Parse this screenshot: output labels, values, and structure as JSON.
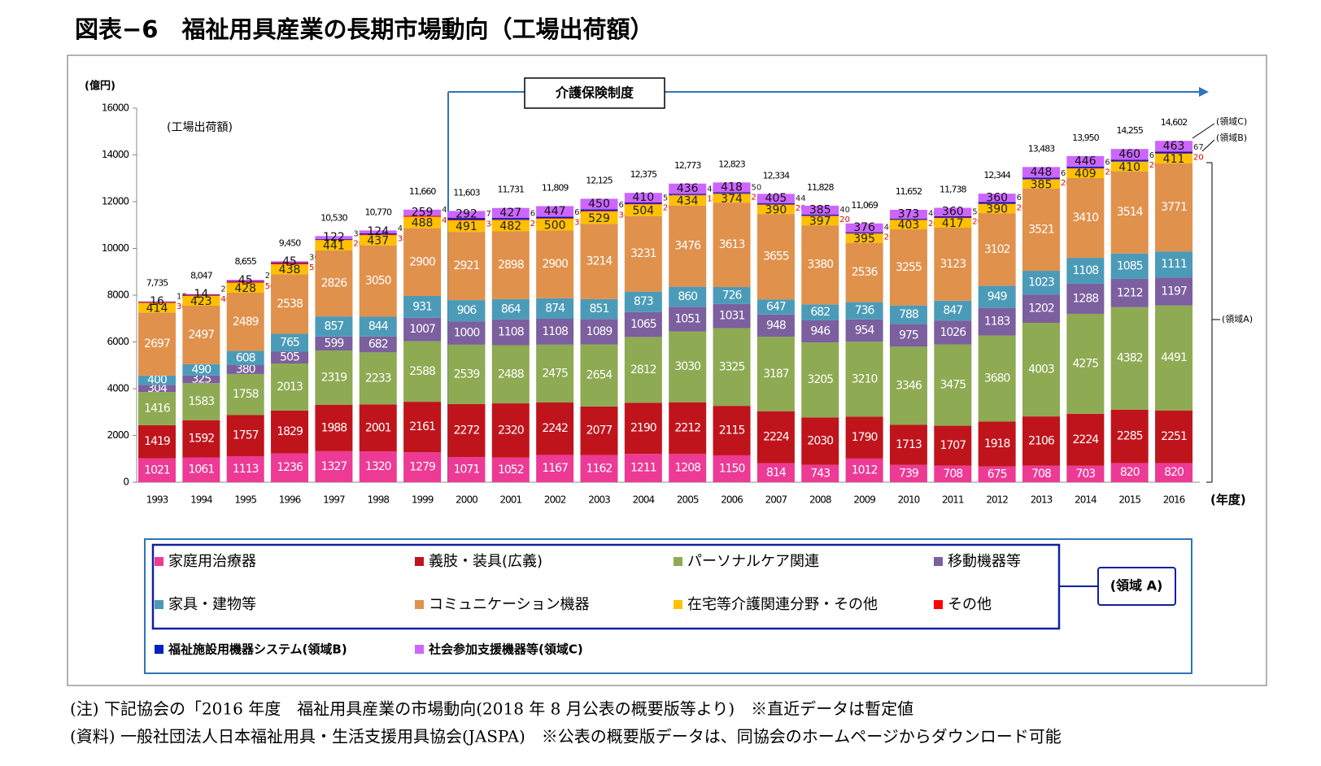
{
  "chart_data": {
    "type": "stacked_bar",
    "title": "図表−6　福祉用具産業の長期市場動向（工場出荷額）",
    "y_label": "(億円)",
    "subtitle": "(工場出荷額)",
    "x_label": "(年度)",
    "annotations": {
      "policy": "介護保険制度",
      "region_c": "(領域C)",
      "region_b": "(領域B)",
      "region_a": "(領域A)",
      "legend_region_a": "(領域 A)"
    },
    "notes": [
      "(注) 下記協会の「2016 年度　福祉用具産業の市場動向(2018 年 8 月公表の概要版等より)　※直近データは暫定値",
      "(資料) 一般社団法人日本福祉用具・生活支援用具協会(JASPA)　※公表の概要版データは、同協会のホームページからダウンロード可能"
    ],
    "categories": [
      "1993",
      "1994",
      "1995",
      "1996",
      "1997",
      "1998",
      "1999",
      "2000",
      "2001",
      "2002",
      "2003",
      "2004",
      "2005",
      "2006",
      "2007",
      "2008",
      "2009",
      "2010",
      "2011",
      "2012",
      "2013",
      "2014",
      "2015",
      "2016"
    ],
    "series": [
      {
        "name": "家庭用治療器",
        "color": "#ec3a95",
        "values": [
          1021,
          1061,
          1113,
          1236,
          1327,
          1320,
          1279,
          1071,
          1052,
          1167,
          1162,
          1211,
          1208,
          1150,
          814,
          743,
          1012,
          739,
          708,
          675,
          708,
          703,
          820,
          820
        ]
      },
      {
        "name": "義肢・装具(広義)",
        "color": "#c0141c",
        "values": [
          1419,
          1592,
          1757,
          1829,
          1988,
          2001,
          2161,
          2272,
          2320,
          2242,
          2077,
          2190,
          2212,
          2115,
          2224,
          2030,
          1790,
          1713,
          1707,
          1918,
          2106,
          2224,
          2285,
          2251
        ]
      },
      {
        "name": "パーソナルケア関連",
        "color": "#8eaa52",
        "values": [
          1416,
          1583,
          1758,
          2013,
          2319,
          2233,
          2588,
          2539,
          2488,
          2475,
          2654,
          2812,
          3030,
          3325,
          3187,
          3205,
          3210,
          3346,
          3475,
          3680,
          4003,
          4275,
          4382,
          4491
        ]
      },
      {
        "name": "移動機器等",
        "color": "#7b5f9e",
        "values": [
          304,
          325,
          380,
          505,
          599,
          682,
          1007,
          1000,
          1108,
          1108,
          1089,
          1065,
          1051,
          1031,
          948,
          946,
          954,
          975,
          1026,
          1183,
          1202,
          1288,
          1212,
          1197
        ]
      },
      {
        "name": "家具・建物等",
        "color": "#4b9bb8",
        "values": [
          400,
          490,
          608,
          765,
          857,
          844,
          931,
          906,
          864,
          874,
          851,
          873,
          860,
          726,
          647,
          682,
          736,
          788,
          847,
          949,
          1023,
          1108,
          1085,
          1111
        ]
      },
      {
        "name": "コミュニケーション機器",
        "color": "#e0914c",
        "values": [
          2697,
          2497,
          2489,
          2538,
          2826,
          3050,
          2900,
          2921,
          2898,
          2900,
          3214,
          3231,
          3476,
          3613,
          3655,
          3380,
          2536,
          3255,
          3123,
          3102,
          3521,
          3410,
          3514,
          3771
        ]
      },
      {
        "name": "在宅等介護関連分野・その他",
        "color": "#ffc000",
        "values": [
          414,
          423,
          428,
          438,
          441,
          437,
          488,
          491,
          482,
          500,
          529,
          504,
          434,
          374,
          390,
          397,
          395,
          403,
          417,
          390,
          385,
          409,
          410,
          411
        ]
      },
      {
        "name": "その他",
        "color": "#ff0000",
        "values": [
          30,
          40,
          50,
          51,
          20,
          38,
          43,
          34,
          29,
          32,
          36,
          26,
          18,
          21,
          20,
          20,
          20,
          20,
          20,
          20,
          20,
          20,
          20,
          20
        ]
      },
      {
        "name": "福祉施設用機器システム(領域B)",
        "color": "#0020c0",
        "values": [
          18,
          22,
          27,
          30,
          31,
          41,
          4,
          77,
          63,
          64,
          63,
          53,
          48,
          50,
          44,
          40,
          40,
          40,
          55,
          67,
          67,
          67,
          67,
          67
        ]
      },
      {
        "name": "社会参加支援機器等(領域C)",
        "color": "#cc66ff",
        "values": [
          16,
          14,
          45,
          45,
          122,
          124,
          259,
          292,
          427,
          447,
          450,
          410,
          436,
          418,
          405,
          385,
          376,
          373,
          360,
          360,
          448,
          446,
          460,
          463
        ]
      }
    ],
    "totals": {
      "values": [
        7735,
        8047,
        8655,
        9450,
        10530,
        10770,
        11660,
        11603,
        11731,
        11809,
        12125,
        12375,
        12773,
        12823,
        12334,
        11828,
        11069,
        11652,
        11738,
        12344,
        13483,
        13950,
        14255,
        14602
      ],
      "value_labels": [
        "7,735",
        "8,047",
        "8,655",
        "9,450",
        "10,530",
        "10,770",
        "11,660",
        "11,603",
        "11,731",
        "11,809",
        "12,125",
        "12,375",
        "12,773",
        "12,823",
        "12,334",
        "11,828",
        "11,069",
        "11,652",
        "11,738",
        "12,344",
        "13,483",
        "13,950",
        "14,255",
        "14,602"
      ]
    },
    "ylim": [
      0,
      16000
    ],
    "yticks": [
      0,
      2000,
      4000,
      6000,
      8000,
      10000,
      12000,
      14000,
      16000
    ]
  }
}
